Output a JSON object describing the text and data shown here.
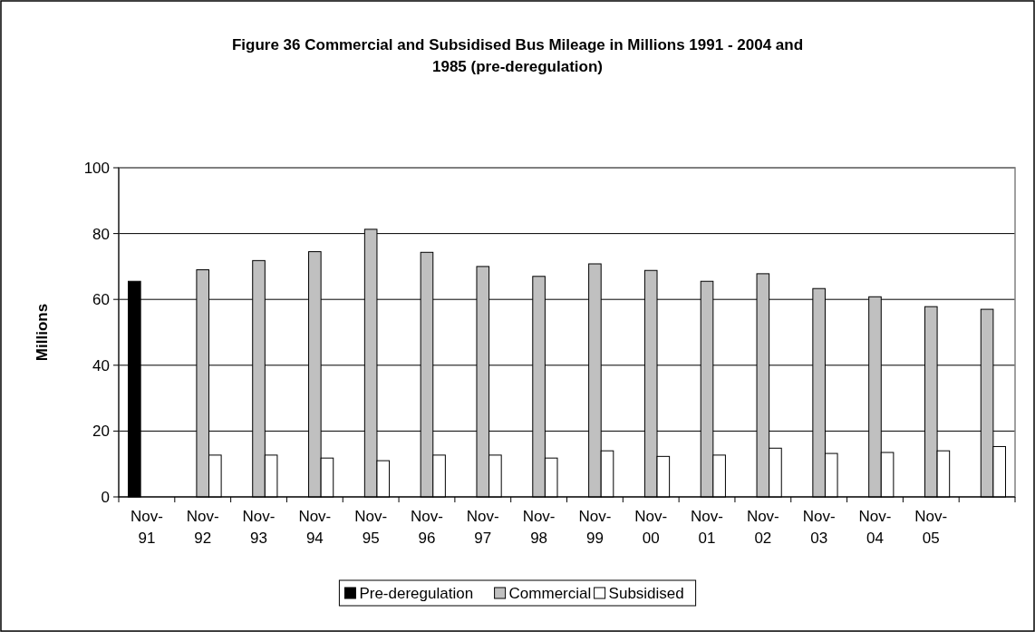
{
  "chart_data": {
    "type": "bar",
    "title": "Figure 36 Commercial and Subsidised Bus Mileage in Millions 1991 - 2004 and 1985 (pre-deregulation)",
    "ylabel": "Millions",
    "categories": [
      "Nov-91",
      "Nov-92",
      "Nov-93",
      "Nov-94",
      "Nov-95",
      "Nov-96",
      "Nov-97",
      "Nov-98",
      "Nov-99",
      "Nov-00",
      "Nov-01",
      "Nov-02",
      "Nov-03",
      "Nov-04",
      "Nov-05",
      null
    ],
    "series": [
      {
        "name": "Pre-deregulation",
        "color": "#000000",
        "values": [
          65.5,
          null,
          null,
          null,
          null,
          null,
          null,
          null,
          null,
          null,
          null,
          null,
          null,
          null,
          null,
          null
        ]
      },
      {
        "name": "Commercial",
        "color": "#c0c0c0",
        "values": [
          null,
          69,
          71.8,
          74.5,
          81.3,
          74.3,
          70,
          67,
          70.8,
          68.8,
          65.5,
          67.8,
          63.3,
          60.8,
          57.8,
          57
        ]
      },
      {
        "name": "Subsidised",
        "color": "#ffffff",
        "values": [
          null,
          12.7,
          12.7,
          11.8,
          11,
          12.7,
          12.7,
          11.8,
          14,
          12.3,
          12.7,
          14.8,
          13.2,
          13.5,
          14,
          15.3
        ]
      }
    ],
    "ylim": [
      0,
      100
    ],
    "yticks": [
      0,
      20,
      40,
      60,
      80,
      100
    ],
    "grid": "y",
    "legend": "bottom"
  }
}
